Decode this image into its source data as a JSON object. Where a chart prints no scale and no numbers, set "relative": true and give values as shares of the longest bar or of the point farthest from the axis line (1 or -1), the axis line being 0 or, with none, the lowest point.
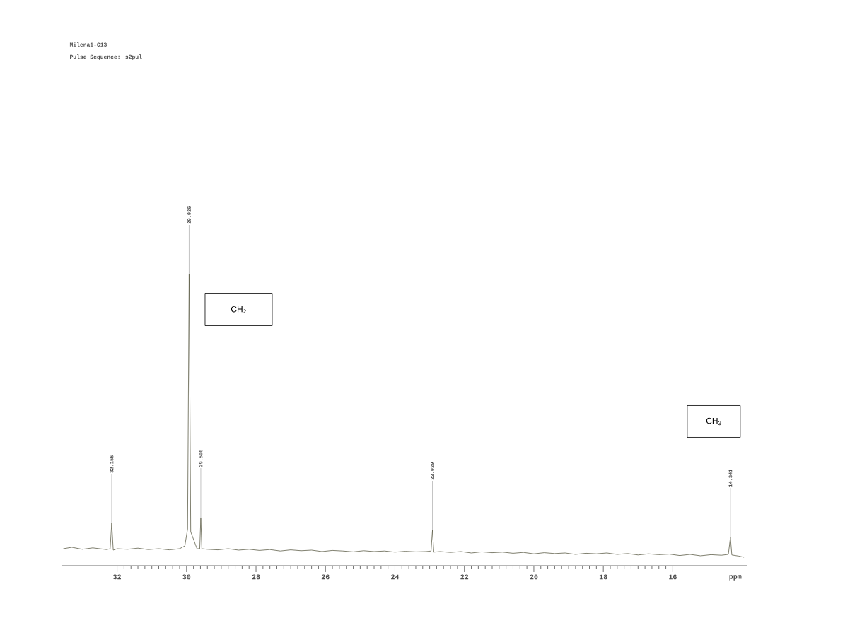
{
  "chart_data": {
    "type": "line",
    "title": "Milena1-C13",
    "subtitle": "Pulse Sequence: s2pul",
    "xlabel": "ppm",
    "relative": true,
    "xlim": [
      33.6,
      13.85
    ],
    "xticks": [
      32,
      30,
      28,
      26,
      24,
      22,
      20,
      18,
      16
    ],
    "grid": false,
    "marker": "none",
    "line_style": "solid",
    "series": [
      {
        "color": "#5f5f4a",
        "x": [
          33.55,
          33.3,
          33.0,
          32.7,
          32.5,
          32.3,
          32.2,
          32.155,
          32.11,
          32.0,
          31.7,
          31.4,
          31.1,
          30.8,
          30.5,
          30.2,
          30.05,
          29.97,
          29.926,
          29.88,
          29.7,
          29.62,
          29.59,
          29.56,
          29.4,
          29.1,
          28.8,
          28.5,
          28.2,
          27.9,
          27.6,
          27.3,
          27.0,
          26.7,
          26.4,
          26.1,
          25.8,
          25.5,
          25.2,
          24.9,
          24.6,
          24.3,
          24.0,
          23.7,
          23.4,
          23.1,
          22.96,
          22.92,
          22.88,
          22.7,
          22.4,
          22.1,
          21.8,
          21.5,
          21.2,
          20.9,
          20.6,
          20.3,
          20.0,
          19.7,
          19.4,
          19.1,
          18.8,
          18.5,
          18.2,
          17.9,
          17.6,
          17.3,
          17.0,
          16.7,
          16.4,
          16.1,
          15.8,
          15.5,
          15.2,
          14.9,
          14.6,
          14.4,
          14.341,
          14.3,
          14.1,
          13.95
        ],
        "values": [
          0.03,
          0.035,
          0.028,
          0.033,
          0.03,
          0.027,
          0.03,
          0.12,
          0.025,
          0.03,
          0.028,
          0.032,
          0.027,
          0.03,
          0.026,
          0.03,
          0.04,
          0.1,
          1,
          0.09,
          0.03,
          0.03,
          0.14,
          0.03,
          0.028,
          0.026,
          0.03,
          0.025,
          0.028,
          0.024,
          0.027,
          0.022,
          0.026,
          0.023,
          0.025,
          0.02,
          0.024,
          0.022,
          0.019,
          0.023,
          0.02,
          0.022,
          0.018,
          0.021,
          0.019,
          0.02,
          0.022,
          0.095,
          0.018,
          0.02,
          0.017,
          0.02,
          0.015,
          0.019,
          0.016,
          0.018,
          0.014,
          0.017,
          0.012,
          0.016,
          0.013,
          0.015,
          0.01,
          0.014,
          0.012,
          0.015,
          0.01,
          0.013,
          0.008,
          0.012,
          0.009,
          0.011,
          0.006,
          0.01,
          0.005,
          0.009,
          0.007,
          0.01,
          0.07,
          0.008,
          0.004,
          0.0
        ]
      }
    ],
    "annotations": [
      {
        "text": "32.155",
        "x": 32.155,
        "y": 0.12
      },
      {
        "text": "29.926",
        "x": 29.926,
        "y": 1
      },
      {
        "text": "29.590",
        "x": 29.59,
        "y": 0.14
      },
      {
        "text": "22.920",
        "x": 22.92,
        "y": 0.095
      },
      {
        "text": "14.341",
        "x": 14.341,
        "y": 0.07
      },
      "CH$_{2}$",
      "CH$_{3}$"
    ]
  }
}
